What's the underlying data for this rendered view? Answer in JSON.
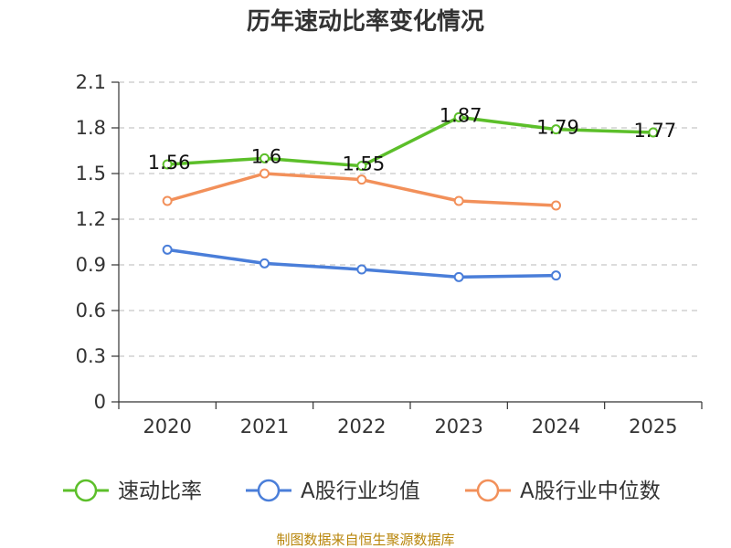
{
  "chart_data": {
    "type": "line",
    "title": "历年速动比率变化情况",
    "categories": [
      "2020",
      "2021",
      "2022",
      "2023",
      "2024",
      "2025"
    ],
    "ylim": [
      0,
      2.1
    ],
    "yticks": [
      "0",
      "0.3",
      "0.6",
      "0.9",
      "1.2",
      "1.5",
      "1.8",
      "2.1"
    ],
    "ytick_values": [
      0,
      0.3,
      0.6,
      0.9,
      1.2,
      1.5,
      1.8,
      2.1
    ],
    "grid": true,
    "legend_position": "bottom",
    "series": [
      {
        "name": "速动比率",
        "color": "#5cbf2a",
        "values": [
          1.56,
          1.6,
          1.55,
          1.87,
          1.79,
          1.77
        ],
        "labels": [
          "1.56",
          "1.6",
          "1.55",
          "1.87",
          "1.79",
          "1.77"
        ],
        "show_labels": true
      },
      {
        "name": "A股行业均值",
        "color": "#4a7ed9",
        "values": [
          1.0,
          0.91,
          0.87,
          0.82,
          0.83,
          null
        ],
        "show_labels": false
      },
      {
        "name": "A股行业中位数",
        "color": "#f2905a",
        "values": [
          1.32,
          1.5,
          1.46,
          1.32,
          1.29,
          null
        ],
        "show_labels": false
      }
    ]
  },
  "footer": {
    "source": "制图数据来自恒生聚源数据库"
  }
}
